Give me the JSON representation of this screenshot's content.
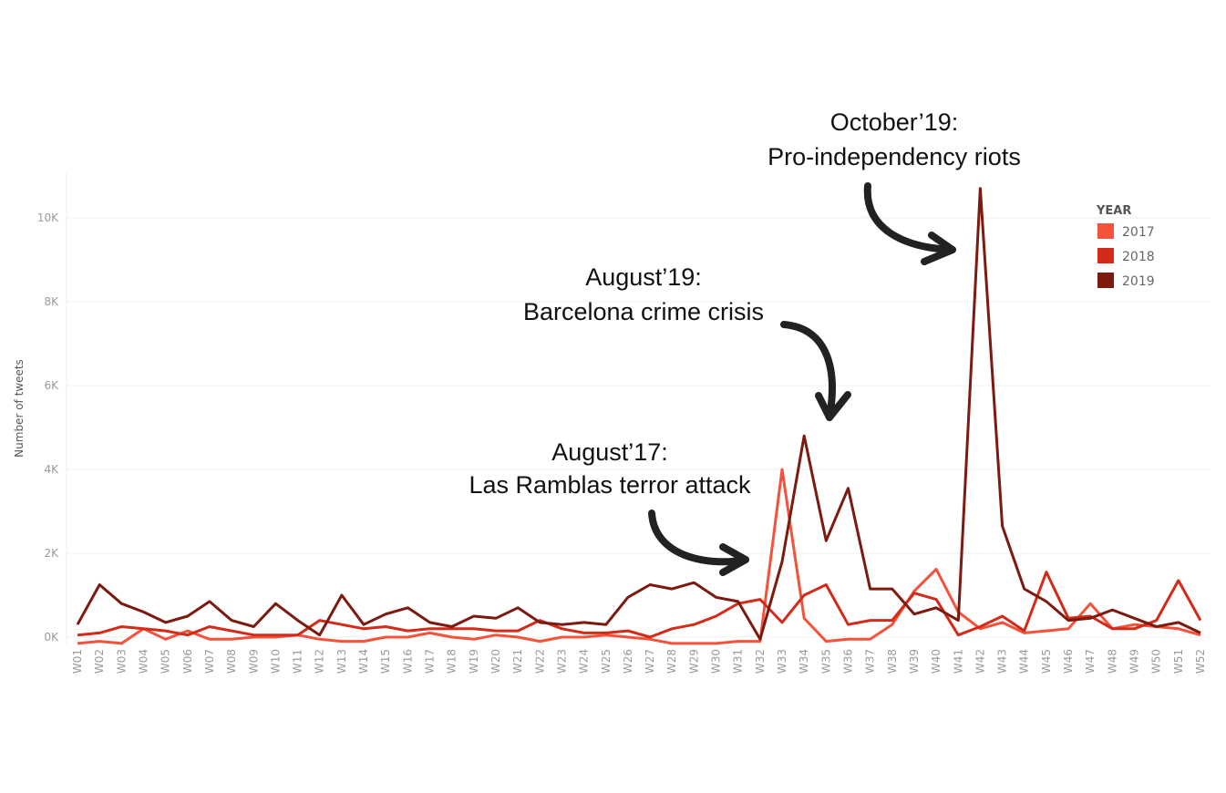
{
  "chart_data": {
    "type": "line",
    "xlabel": "",
    "ylabel": "Number of tweets",
    "ylim": [
      0,
      11000
    ],
    "yticks": [
      0,
      2000,
      4000,
      6000,
      8000,
      10000
    ],
    "ytick_labels": [
      "0K",
      "2K",
      "4K",
      "6K",
      "8K",
      "10K"
    ],
    "grid": true,
    "legend": {
      "title": "YEAR",
      "position": "top-right"
    },
    "categories": [
      "W01",
      "W02",
      "W03",
      "W04",
      "W05",
      "W06",
      "W07",
      "W08",
      "W09",
      "W10",
      "W11",
      "W12",
      "W13",
      "W14",
      "W15",
      "W16",
      "W17",
      "W18",
      "W19",
      "W20",
      "W21",
      "W22",
      "W23",
      "W24",
      "W25",
      "W26",
      "W27",
      "W28",
      "W29",
      "W30",
      "W31",
      "W32",
      "W33",
      "W34",
      "W35",
      "W36",
      "W37",
      "W38",
      "W39",
      "W40",
      "W41",
      "W42",
      "W43",
      "W44",
      "W45",
      "W46",
      "W47",
      "W48",
      "W49",
      "W50",
      "W51",
      "W52"
    ],
    "series": [
      {
        "name": "2017",
        "color": "#f4523a",
        "values": [
          -150,
          -100,
          -150,
          200,
          -50,
          150,
          -50,
          -50,
          0,
          0,
          50,
          -50,
          -100,
          -100,
          0,
          0,
          100,
          0,
          -50,
          50,
          0,
          -100,
          0,
          0,
          50,
          0,
          -50,
          -150,
          -150,
          -150,
          -100,
          -100,
          4000,
          450,
          -100,
          -50,
          -50,
          300,
          1100,
          1620,
          600,
          200,
          350,
          100,
          150,
          200,
          800,
          200,
          300,
          250,
          200,
          50
        ]
      },
      {
        "name": "2018",
        "color": "#d42a1a",
        "values": [
          50,
          100,
          250,
          200,
          150,
          50,
          250,
          150,
          50,
          50,
          50,
          400,
          300,
          200,
          250,
          150,
          200,
          200,
          200,
          150,
          150,
          400,
          200,
          100,
          100,
          150,
          0,
          200,
          300,
          500,
          800,
          900,
          350,
          1000,
          1250,
          300,
          400,
          400,
          1050,
          900,
          50,
          250,
          500,
          150,
          1550,
          450,
          500,
          200,
          200,
          400,
          1350,
          400
        ]
      },
      {
        "name": "2019",
        "color": "#7c1a10",
        "values": [
          300,
          1250,
          800,
          600,
          350,
          500,
          850,
          400,
          250,
          800,
          400,
          50,
          1000,
          300,
          550,
          700,
          350,
          250,
          500,
          450,
          700,
          350,
          300,
          350,
          300,
          950,
          1250,
          1150,
          1300,
          950,
          850,
          -50,
          1800,
          4800,
          2300,
          3550,
          1150,
          1150,
          550,
          700,
          400,
          10700,
          2650,
          1150,
          850,
          400,
          450,
          650,
          450,
          250,
          350,
          100
        ]
      }
    ],
    "annotations": [
      {
        "lines": [
          "August’17:",
          "Las Ramblas terror attack"
        ]
      },
      {
        "lines": [
          "August’19:",
          "Barcelona crime crisis"
        ]
      },
      {
        "lines": [
          "October’19:",
          "Pro-independency riots"
        ]
      }
    ]
  }
}
